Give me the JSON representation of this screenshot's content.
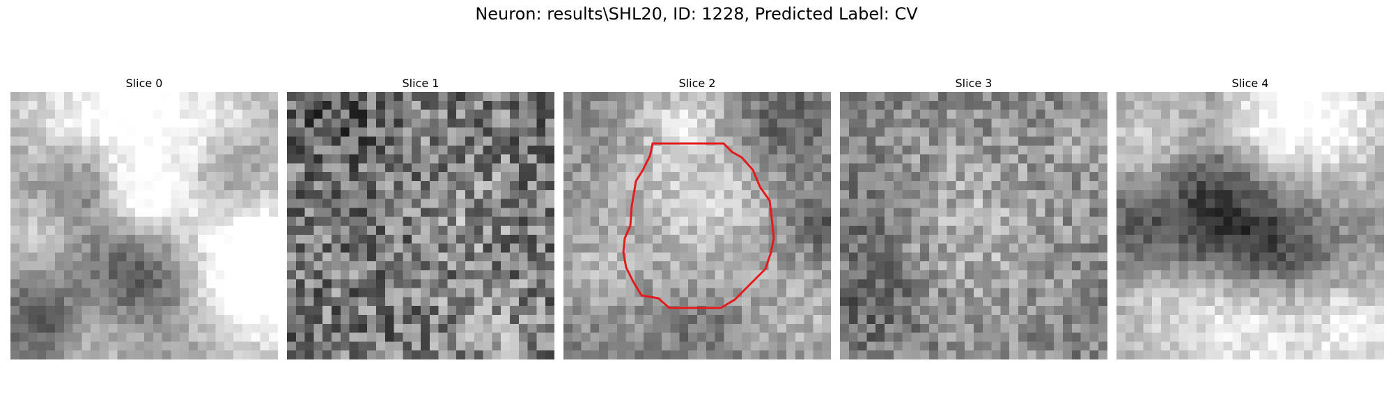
{
  "title": "Neuron: results\\SHL20, ID: 1228, Predicted Label: CV",
  "contour_color": "#e41a1c",
  "panels": [
    {
      "label": "Slice 0"
    },
    {
      "label": "Slice 1"
    },
    {
      "label": "Slice 2"
    },
    {
      "label": "Slice 3"
    },
    {
      "label": "Slice 4"
    }
  ]
}
